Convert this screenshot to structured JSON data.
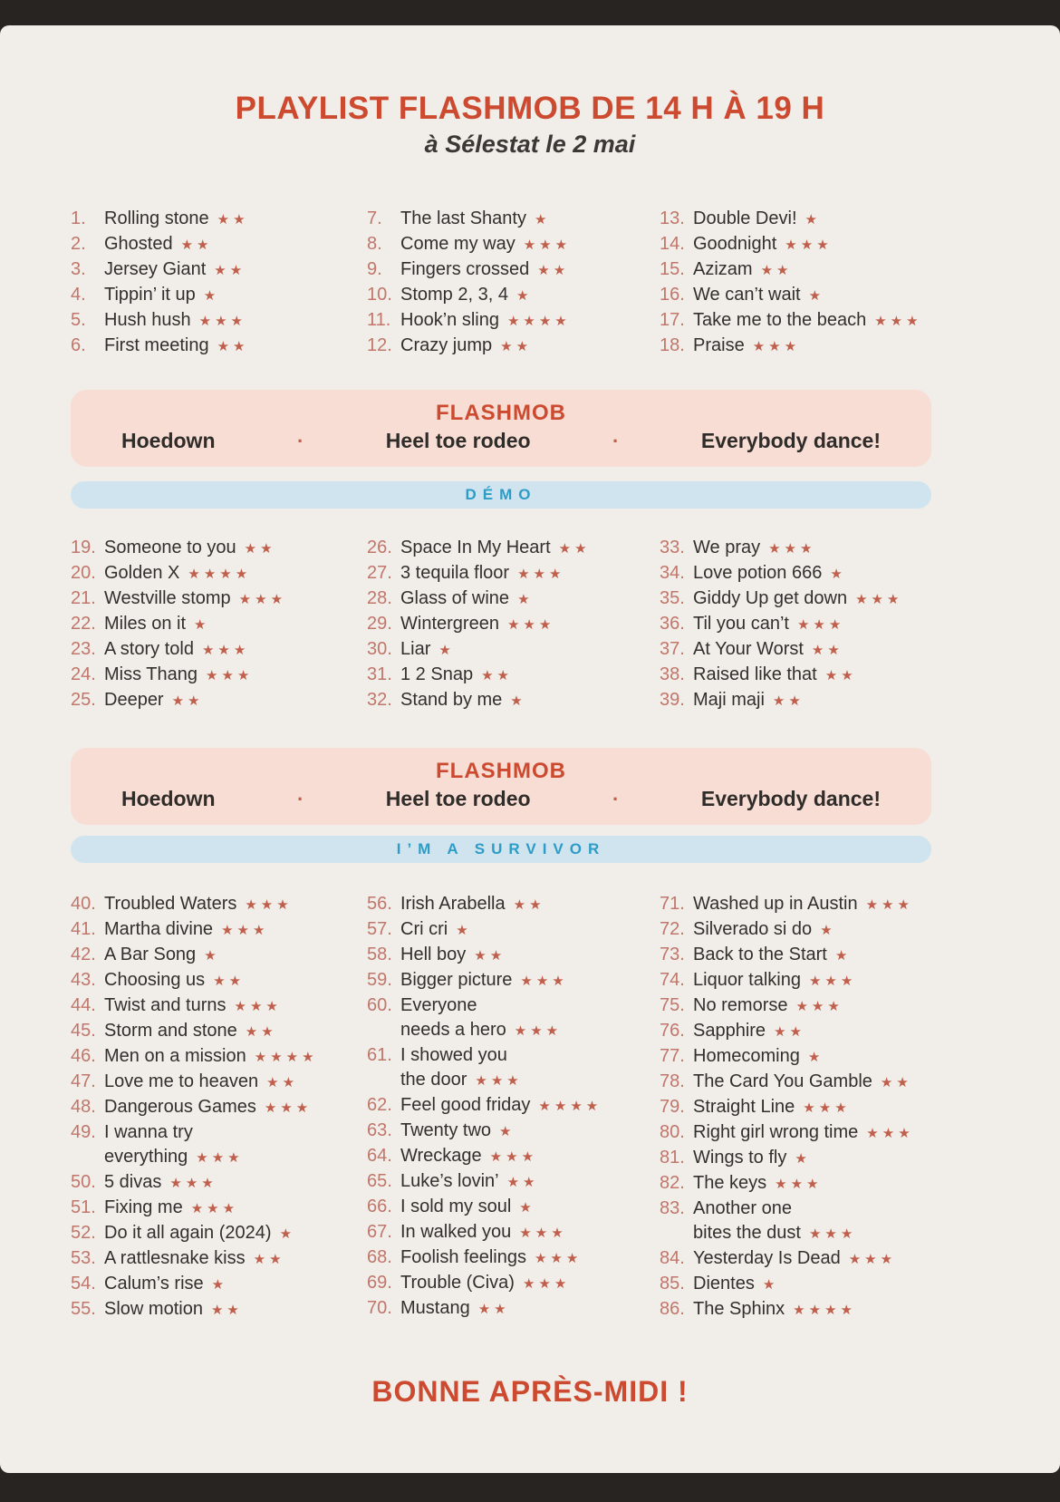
{
  "header": {
    "title": "PLAYLIST FLASHMOB DE 14 H À 19 H",
    "subtitle": "à Sélestat le 2 mai"
  },
  "colors": {
    "orange": "#cc4a2f",
    "num": "#c1766b",
    "star": "#bf5f4c",
    "ink": "#32302e",
    "blue": "#2e9cc6",
    "banner-pink": "#f7ddd3",
    "banner-blue": "#cfe4ee"
  },
  "banners": {
    "flashmob": {
      "label": "FLASHMOB",
      "separator": "·",
      "dances": [
        "Hoedown",
        "Heel toe rodeo",
        "Everybody dance!"
      ]
    },
    "demo": "DÉMO",
    "survivor": "I’M A SURVIVOR"
  },
  "song_groups": [
    {
      "columns": [
        [
          {
            "num": "1.",
            "title": "Rolling stone",
            "stars": 2
          },
          {
            "num": "2.",
            "title": "Ghosted",
            "stars": 2
          },
          {
            "num": "3.",
            "title": "Jersey Giant",
            "stars": 2
          },
          {
            "num": "4.",
            "title": "Tippin’ it up",
            "stars": 1
          },
          {
            "num": "5.",
            "title": "Hush hush",
            "stars": 3
          },
          {
            "num": "6.",
            "title": "First meeting",
            "stars": 2
          }
        ],
        [
          {
            "num": "7.",
            "title": "The last Shanty",
            "stars": 1
          },
          {
            "num": "8.",
            "title": "Come my way",
            "stars": 3
          },
          {
            "num": "9.",
            "title": "Fingers crossed",
            "stars": 2
          },
          {
            "num": "10.",
            "title": "Stomp 2, 3, 4",
            "stars": 1
          },
          {
            "num": "11.",
            "title": "Hook’n sling",
            "stars": 4
          },
          {
            "num": "12.",
            "title": "Crazy jump",
            "stars": 2
          }
        ],
        [
          {
            "num": "13.",
            "title": "Double Devi!",
            "stars": 1
          },
          {
            "num": "14.",
            "title": "Goodnight",
            "stars": 3
          },
          {
            "num": "15.",
            "title": "Azizam",
            "stars": 2
          },
          {
            "num": "16.",
            "title": "We can’t wait",
            "stars": 1
          },
          {
            "num": "17.",
            "title": "Take me to the beach",
            "stars": 3
          },
          {
            "num": "18.",
            "title": "Praise",
            "stars": 3
          }
        ]
      ]
    },
    {
      "columns": [
        [
          {
            "num": "19.",
            "title": "Someone to you",
            "stars": 2
          },
          {
            "num": "20.",
            "title": "Golden X",
            "stars": 4
          },
          {
            "num": "21.",
            "title": "Westville stomp",
            "stars": 3
          },
          {
            "num": "22.",
            "title": "Miles on it",
            "stars": 1
          },
          {
            "num": "23.",
            "title": "A story told",
            "stars": 3
          },
          {
            "num": "24.",
            "title": "Miss Thang",
            "stars": 3
          },
          {
            "num": "25.",
            "title": "Deeper",
            "stars": 2
          }
        ],
        [
          {
            "num": "26.",
            "title": "Space In My Heart",
            "stars": 2
          },
          {
            "num": "27.",
            "title": "3 tequila floor",
            "stars": 3
          },
          {
            "num": "28.",
            "title": "Glass of wine",
            "stars": 1
          },
          {
            "num": "29.",
            "title": "Wintergreen",
            "stars": 3
          },
          {
            "num": "30.",
            "title": "Liar",
            "stars": 1
          },
          {
            "num": "31.",
            "title": "1 2 Snap",
            "stars": 2
          },
          {
            "num": "32.",
            "title": "Stand by me",
            "stars": 1
          }
        ],
        [
          {
            "num": "33.",
            "title": "We pray",
            "stars": 3
          },
          {
            "num": "34.",
            "title": "Love potion 666",
            "stars": 1
          },
          {
            "num": "35.",
            "title": "Giddy Up get down",
            "stars": 3
          },
          {
            "num": "36.",
            "title": "Til you can’t",
            "stars": 3
          },
          {
            "num": "37.",
            "title": "At Your Worst",
            "stars": 2
          },
          {
            "num": "38.",
            "title": "Raised like that",
            "stars": 2
          },
          {
            "num": "39.",
            "title": "Maji maji",
            "stars": 2
          }
        ]
      ]
    },
    {
      "columns": [
        [
          {
            "num": "40.",
            "title": "Troubled Waters",
            "stars": 3
          },
          {
            "num": "41.",
            "title": "Martha divine",
            "stars": 3
          },
          {
            "num": "42.",
            "title": "A Bar Song",
            "stars": 1
          },
          {
            "num": "43.",
            "title": "Choosing us",
            "stars": 2
          },
          {
            "num": "44.",
            "title": "Twist and turns",
            "stars": 3
          },
          {
            "num": "45.",
            "title": "Storm and stone",
            "stars": 2
          },
          {
            "num": "46.",
            "title": "Men on a mission",
            "stars": 4
          },
          {
            "num": "47.",
            "title": "Love me to heaven",
            "stars": 2
          },
          {
            "num": "48.",
            "title": "Dangerous Games",
            "stars": 3
          },
          {
            "num": "49.",
            "title": "I wanna try",
            "title2": "everything",
            "stars": 3
          },
          {
            "num": "50.",
            "title": "5 divas",
            "stars": 3
          },
          {
            "num": "51.",
            "title": "Fixing me",
            "stars": 3
          },
          {
            "num": "52.",
            "title": "Do it all again (2024)",
            "stars": 1
          },
          {
            "num": "53.",
            "title": "A rattlesnake kiss",
            "stars": 2
          },
          {
            "num": "54.",
            "title": "Calum’s rise",
            "stars": 1
          },
          {
            "num": "55.",
            "title": "Slow motion",
            "stars": 2
          }
        ],
        [
          {
            "num": "56.",
            "title": "Irish Arabella",
            "stars": 2
          },
          {
            "num": "57.",
            "title": "Cri cri",
            "stars": 1
          },
          {
            "num": "58.",
            "title": "Hell boy",
            "stars": 2
          },
          {
            "num": "59.",
            "title": "Bigger picture",
            "stars": 3
          },
          {
            "num": "60.",
            "title": "Everyone",
            "title2": "needs a hero",
            "stars": 3
          },
          {
            "num": "61.",
            "title": "I showed you",
            "title2": "the door",
            "stars": 3
          },
          {
            "num": "62.",
            "title": "Feel good friday",
            "stars": 4
          },
          {
            "num": "63.",
            "title": "Twenty two",
            "stars": 1
          },
          {
            "num": "64.",
            "title": "Wreckage",
            "stars": 3
          },
          {
            "num": "65.",
            "title": "Luke’s lovin’",
            "stars": 2
          },
          {
            "num": "66.",
            "title": "I sold my soul",
            "stars": 1
          },
          {
            "num": "67.",
            "title": "In walked you",
            "stars": 3
          },
          {
            "num": "68.",
            "title": "Foolish feelings",
            "stars": 3
          },
          {
            "num": "69.",
            "title": "Trouble (Civa)",
            "stars": 3
          },
          {
            "num": "70.",
            "title": "Mustang",
            "stars": 2
          }
        ],
        [
          {
            "num": "71.",
            "title": "Washed up in Austin",
            "stars": 3
          },
          {
            "num": "72.",
            "title": "Silverado si do",
            "stars": 1
          },
          {
            "num": "73.",
            "title": "Back to the Start",
            "stars": 1
          },
          {
            "num": "74.",
            "title": "Liquor talking",
            "stars": 3
          },
          {
            "num": "75.",
            "title": "No remorse",
            "stars": 3
          },
          {
            "num": "76.",
            "title": "Sapphire",
            "stars": 2
          },
          {
            "num": "77.",
            "title": "Homecoming",
            "stars": 1
          },
          {
            "num": "78.",
            "title": "The Card You Gamble",
            "stars": 2
          },
          {
            "num": "79.",
            "title": "Straight Line",
            "stars": 3
          },
          {
            "num": "80.",
            "title": "Right girl wrong time",
            "stars": 3
          },
          {
            "num": "81.",
            "title": "Wings to fly",
            "stars": 1
          },
          {
            "num": "82.",
            "title": "The keys",
            "stars": 3
          },
          {
            "num": "83.",
            "title": "Another one",
            "title2": "bites the dust",
            "stars": 3
          },
          {
            "num": "84.",
            "title": "Yesterday Is Dead",
            "stars": 3
          },
          {
            "num": "85.",
            "title": "Dientes",
            "stars": 1
          },
          {
            "num": "86.",
            "title": "The Sphinx",
            "stars": 4
          }
        ]
      ]
    }
  ],
  "footer": {
    "text": "BONNE APRÈS-MIDI !"
  }
}
